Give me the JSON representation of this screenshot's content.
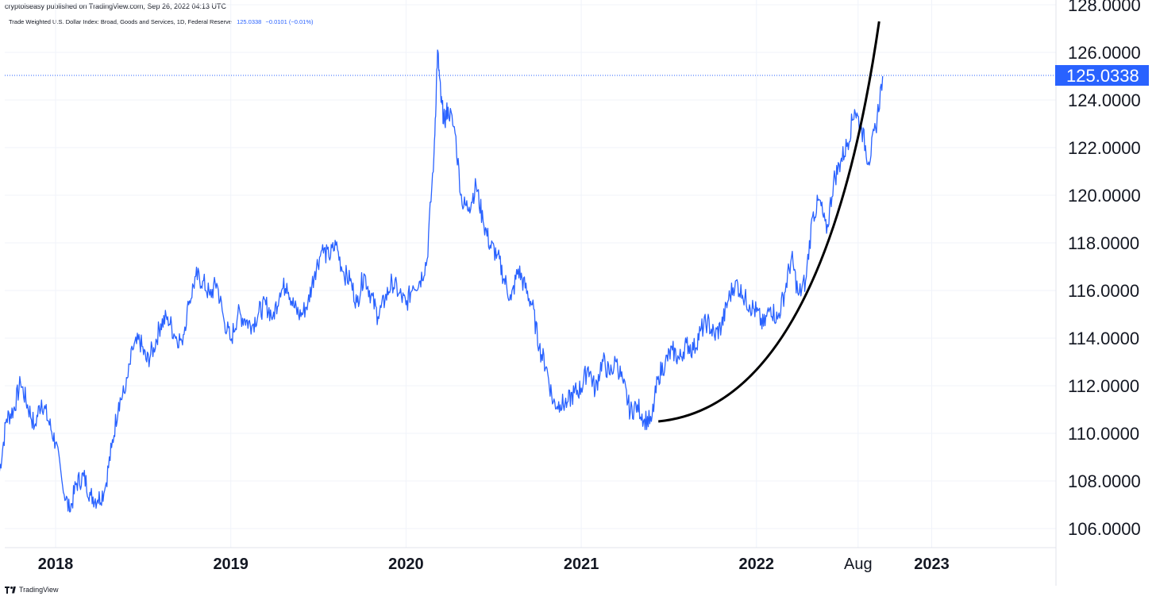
{
  "header": {
    "published": "cryptoiseasy published on TradingView.com, Sep 26, 2022 04:13 UTC"
  },
  "symbol": {
    "name": "Trade Weighted U.S. Dollar Index: Broad, Goods and Services, 1D, Federal Reserve",
    "value": "125.0338",
    "change": "−0.0101 (−0.01%)"
  },
  "price_label": "125.0338",
  "footer": {
    "brand": "TradingView"
  },
  "colors": {
    "line": "#2962ff",
    "curve": "#000000",
    "grid": "#f0f3fa",
    "label_bg": "#2962ff"
  },
  "chart_data": {
    "type": "line",
    "series": [
      {
        "values_x_years": [
          2017.68,
          2017.72,
          2017.76,
          2017.8,
          2017.84,
          2017.88,
          2017.92,
          2017.96,
          2018.0,
          2018.04,
          2018.08,
          2018.12,
          2018.16,
          2018.2,
          2018.24,
          2018.28,
          2018.32,
          2018.36,
          2018.4,
          2018.44,
          2018.48,
          2018.52,
          2018.56,
          2018.6,
          2018.64,
          2018.68,
          2018.72,
          2018.76,
          2018.8,
          2018.84,
          2018.88,
          2018.92,
          2018.96,
          2019.0,
          2019.04,
          2019.08,
          2019.12,
          2019.16,
          2019.2,
          2019.24,
          2019.28,
          2019.32,
          2019.36,
          2019.4,
          2019.44,
          2019.48,
          2019.52,
          2019.56,
          2019.6,
          2019.64,
          2019.68,
          2019.72,
          2019.76,
          2019.8,
          2019.84,
          2019.88,
          2019.92,
          2019.96,
          2020.0,
          2020.04,
          2020.08,
          2020.12,
          2020.16,
          2020.18,
          2020.2,
          2020.22,
          2020.24,
          2020.28,
          2020.32,
          2020.36,
          2020.4,
          2020.44,
          2020.48,
          2020.52,
          2020.56,
          2020.6,
          2020.64,
          2020.68,
          2020.72,
          2020.76,
          2020.8,
          2020.84,
          2020.88,
          2020.92,
          2020.96,
          2021.0,
          2021.04,
          2021.08,
          2021.12,
          2021.16,
          2021.2,
          2021.24,
          2021.28,
          2021.32,
          2021.36,
          2021.4,
          2021.44,
          2021.48,
          2021.52,
          2021.56,
          2021.6,
          2021.64,
          2021.68,
          2021.72,
          2021.76,
          2021.8,
          2021.84,
          2021.88,
          2021.92,
          2021.96,
          2022.0,
          2022.04,
          2022.08,
          2022.12,
          2022.16,
          2022.2,
          2022.24,
          2022.28,
          2022.32,
          2022.36,
          2022.4,
          2022.44,
          2022.48,
          2022.52,
          2022.56,
          2022.6,
          2022.64,
          2022.68,
          2022.72
        ],
        "values_y": [
          108.4,
          110.6,
          111.0,
          112.1,
          111.2,
          110.3,
          111.4,
          110.5,
          109.6,
          107.8,
          106.7,
          107.9,
          108.2,
          107.4,
          107.2,
          107.6,
          109.4,
          111.3,
          111.8,
          113.5,
          113.9,
          113.0,
          113.6,
          114.6,
          114.9,
          114.1,
          113.9,
          115.4,
          116.6,
          116.4,
          115.8,
          116.3,
          114.8,
          113.9,
          115.0,
          114.8,
          114.5,
          115.1,
          115.4,
          114.9,
          115.9,
          116.3,
          115.3,
          114.9,
          115.5,
          116.8,
          117.7,
          117.4,
          117.9,
          116.8,
          116.4,
          115.5,
          116.7,
          115.8,
          114.9,
          115.6,
          116.4,
          115.9,
          115.4,
          116.2,
          116.4,
          117.3,
          121.8,
          126.1,
          123.9,
          123.1,
          123.7,
          122.6,
          119.6,
          119.5,
          120.4,
          118.9,
          117.9,
          117.5,
          116.5,
          115.6,
          116.9,
          116.1,
          115.4,
          113.6,
          112.8,
          111.3,
          111.2,
          111.3,
          111.7,
          111.9,
          112.8,
          111.8,
          113.1,
          112.5,
          113.0,
          112.1,
          110.9,
          111.2,
          110.6,
          110.5,
          112.4,
          113.0,
          113.5,
          113.1,
          113.8,
          113.5,
          114.3,
          114.7,
          114.1,
          114.5,
          115.6,
          116.4,
          115.8,
          115.4,
          115.1,
          114.5,
          115.3,
          114.8,
          115.9,
          117.4,
          115.8,
          116.4,
          119.1,
          119.8,
          118.4,
          120.6,
          121.4,
          122.2,
          123.6,
          122.8,
          121.4,
          122.8,
          125.0
        ]
      }
    ],
    "ylim": [
      105.2,
      128.2
    ],
    "y_ticks": [
      "106.0000",
      "108.0000",
      "110.0000",
      "112.0000",
      "114.0000",
      "116.0000",
      "118.0000",
      "120.0000",
      "122.0000",
      "124.0000",
      "126.0000",
      "128.0000"
    ],
    "x_ticks": [
      "2018",
      "2019",
      "2020",
      "2021",
      "2022",
      "Aug",
      "2023"
    ],
    "last_value": 125.0338,
    "trend_curve_start": {
      "x_year": 2021.44,
      "y": 110.5
    },
    "trend_curve_end": {
      "x_year": 2022.7,
      "y": 127.3
    }
  }
}
